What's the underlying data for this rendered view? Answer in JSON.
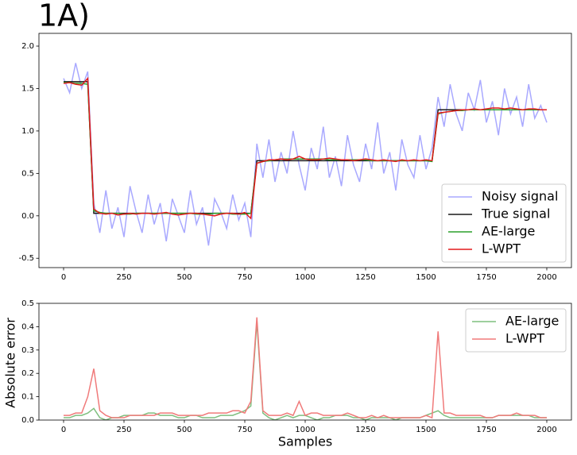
{
  "chart_data": [
    {
      "type": "line",
      "title": "1A)",
      "x": [
        0,
        25,
        50,
        75,
        100,
        125,
        150,
        175,
        200,
        225,
        250,
        275,
        300,
        325,
        350,
        375,
        400,
        425,
        450,
        475,
        500,
        525,
        550,
        575,
        600,
        625,
        650,
        675,
        700,
        725,
        750,
        775,
        800,
        825,
        850,
        875,
        900,
        925,
        950,
        975,
        1000,
        1025,
        1050,
        1075,
        1100,
        1125,
        1150,
        1175,
        1200,
        1225,
        1250,
        1275,
        1300,
        1325,
        1350,
        1375,
        1400,
        1425,
        1450,
        1475,
        1500,
        1525,
        1550,
        1575,
        1600,
        1625,
        1650,
        1675,
        1700,
        1725,
        1750,
        1775,
        1800,
        1825,
        1850,
        1875,
        1900,
        1925,
        1950,
        1975,
        2000
      ],
      "xlim": [
        -102,
        2102
      ],
      "xticks": [
        0,
        250,
        500,
        750,
        1000,
        1250,
        1500,
        1750,
        2000
      ],
      "ylim": [
        -0.61,
        2.15
      ],
      "yticks": [
        {
          "value": -0.5,
          "label": "-0.5"
        },
        {
          "value": 0,
          "label": "0.0"
        },
        0.5,
        {
          "value": 1,
          "label": "1.0"
        },
        1.5,
        {
          "value": 2,
          "label": "2.0"
        }
      ],
      "legend": "lower right",
      "series": [
        {
          "name": "Noisy signal",
          "color": "#a9a9ff",
          "values": [
            1.62,
            1.45,
            1.8,
            1.5,
            1.7,
            0.15,
            -0.2,
            0.3,
            -0.15,
            0.1,
            -0.25,
            0.35,
            0.05,
            -0.2,
            0.25,
            -0.1,
            0.15,
            -0.3,
            0.2,
            0.0,
            -0.2,
            0.3,
            -0.1,
            0.1,
            -0.35,
            0.2,
            0.05,
            -0.15,
            0.25,
            -0.05,
            0.15,
            -0.25,
            0.85,
            0.45,
            0.9,
            0.4,
            0.75,
            0.5,
            1.0,
            0.6,
            0.3,
            0.8,
            0.55,
            1.05,
            0.45,
            0.7,
            0.35,
            0.95,
            0.6,
            0.4,
            0.85,
            0.55,
            1.1,
            0.5,
            0.75,
            0.3,
            0.9,
            0.6,
            0.45,
            0.95,
            0.55,
            0.8,
            1.4,
            1.05,
            1.55,
            1.2,
            1.0,
            1.45,
            1.25,
            1.6,
            1.1,
            1.35,
            0.95,
            1.5,
            1.2,
            1.4,
            1.05,
            1.55,
            1.15,
            1.3,
            1.1
          ]
        },
        {
          "name": "True signal",
          "color": "#1a1a1a",
          "values": [
            1.58,
            1.58,
            1.58,
            1.58,
            1.58,
            0.03,
            0.03,
            0.03,
            0.03,
            0.03,
            0.03,
            0.03,
            0.03,
            0.03,
            0.03,
            0.03,
            0.03,
            0.03,
            0.03,
            0.03,
            0.03,
            0.03,
            0.03,
            0.03,
            0.03,
            0.03,
            0.03,
            0.03,
            0.03,
            0.03,
            0.03,
            0.03,
            0.65,
            0.65,
            0.65,
            0.65,
            0.65,
            0.65,
            0.65,
            0.65,
            0.65,
            0.65,
            0.65,
            0.65,
            0.65,
            0.65,
            0.65,
            0.65,
            0.65,
            0.65,
            0.65,
            0.65,
            0.65,
            0.65,
            0.65,
            0.65,
            0.65,
            0.65,
            0.65,
            0.65,
            0.65,
            0.65,
            1.25,
            1.25,
            1.25,
            1.25,
            1.25,
            1.25,
            1.25,
            1.25,
            1.25,
            1.25,
            1.25,
            1.25,
            1.25,
            1.25,
            1.25,
            1.25,
            1.25,
            1.25,
            1.25
          ]
        },
        {
          "name": "AE-large",
          "color": "#2ca02c",
          "values": [
            1.57,
            1.57,
            1.56,
            1.56,
            1.55,
            0.06,
            0.04,
            0.03,
            0.03,
            0.03,
            0.02,
            0.02,
            0.03,
            0.03,
            0.03,
            0.03,
            0.03,
            0.03,
            0.03,
            0.03,
            0.03,
            0.03,
            0.02,
            0.02,
            0.02,
            0.03,
            0.03,
            0.03,
            0.02,
            0.02,
            0.02,
            0.03,
            0.62,
            0.64,
            0.65,
            0.66,
            0.67,
            0.67,
            0.67,
            0.67,
            0.67,
            0.67,
            0.67,
            0.67,
            0.66,
            0.66,
            0.66,
            0.66,
            0.66,
            0.66,
            0.66,
            0.65,
            0.65,
            0.65,
            0.65,
            0.65,
            0.65,
            0.65,
            0.65,
            0.65,
            0.65,
            0.64,
            1.2,
            1.22,
            1.23,
            1.24,
            1.24,
            1.25,
            1.25,
            1.25,
            1.25,
            1.25,
            1.25,
            1.25,
            1.25,
            1.25,
            1.25,
            1.25,
            1.25,
            1.25,
            1.25
          ]
        },
        {
          "name": "L-WPT",
          "color": "#e31a1c",
          "values": [
            1.56,
            1.57,
            1.55,
            1.54,
            1.62,
            0.08,
            0.03,
            0.02,
            0.03,
            0.01,
            0.02,
            0.03,
            0.02,
            0.03,
            0.03,
            0.02,
            0.03,
            0.04,
            0.02,
            0.01,
            0.02,
            0.03,
            0.03,
            0.02,
            0.01,
            0.0,
            0.02,
            0.03,
            0.03,
            0.02,
            0.04,
            -0.03,
            0.62,
            0.64,
            0.66,
            0.66,
            0.67,
            0.66,
            0.67,
            0.7,
            0.67,
            0.66,
            0.66,
            0.67,
            0.68,
            0.67,
            0.66,
            0.66,
            0.65,
            0.66,
            0.67,
            0.66,
            0.65,
            0.66,
            0.65,
            0.64,
            0.66,
            0.65,
            0.66,
            0.65,
            0.66,
            0.65,
            1.21,
            1.22,
            1.23,
            1.24,
            1.25,
            1.25,
            1.26,
            1.25,
            1.26,
            1.27,
            1.27,
            1.26,
            1.27,
            1.26,
            1.25,
            1.26,
            1.26,
            1.25,
            1.25
          ]
        }
      ]
    },
    {
      "type": "line",
      "x_label": "Samples",
      "y_label": "Absolute error",
      "x": [
        0,
        25,
        50,
        75,
        100,
        125,
        150,
        175,
        200,
        225,
        250,
        275,
        300,
        325,
        350,
        375,
        400,
        425,
        450,
        475,
        500,
        525,
        550,
        575,
        600,
        625,
        650,
        675,
        700,
        725,
        750,
        775,
        800,
        825,
        850,
        875,
        900,
        925,
        950,
        975,
        1000,
        1025,
        1050,
        1075,
        1100,
        1125,
        1150,
        1175,
        1200,
        1225,
        1250,
        1275,
        1300,
        1325,
        1350,
        1375,
        1400,
        1425,
        1450,
        1475,
        1500,
        1525,
        1550,
        1575,
        1600,
        1625,
        1650,
        1675,
        1700,
        1725,
        1750,
        1775,
        1800,
        1825,
        1850,
        1875,
        1900,
        1925,
        1950,
        1975,
        2000
      ],
      "xlim": [
        -102,
        2102
      ],
      "xticks": [
        0,
        250,
        500,
        750,
        1000,
        1250,
        1500,
        1750,
        2000
      ],
      "ylim": [
        0,
        0.5
      ],
      "yticks": [
        {
          "value": 0,
          "label": "0.0"
        },
        0.1,
        0.2,
        0.3,
        0.4,
        0.5
      ],
      "legend": "upper right",
      "series": [
        {
          "name": "AE-large",
          "color": "#7fbf7f",
          "values": [
            0.01,
            0.01,
            0.02,
            0.02,
            0.03,
            0.05,
            0.01,
            0.0,
            0.01,
            0.01,
            0.02,
            0.02,
            0.02,
            0.02,
            0.03,
            0.03,
            0.02,
            0.02,
            0.02,
            0.01,
            0.01,
            0.02,
            0.02,
            0.01,
            0.01,
            0.01,
            0.02,
            0.02,
            0.02,
            0.03,
            0.04,
            0.06,
            0.42,
            0.03,
            0.01,
            0.0,
            0.01,
            0.02,
            0.01,
            0.02,
            0.02,
            0.01,
            0.0,
            0.01,
            0.01,
            0.02,
            0.02,
            0.02,
            0.01,
            0.01,
            0.0,
            0.01,
            0.01,
            0.01,
            0.01,
            0.0,
            0.01,
            0.01,
            0.01,
            0.01,
            0.02,
            0.03,
            0.04,
            0.02,
            0.01,
            0.01,
            0.01,
            0.01,
            0.01,
            0.01,
            0.01,
            0.01,
            0.02,
            0.02,
            0.02,
            0.02,
            0.02,
            0.02,
            0.01,
            0.01,
            0.01
          ]
        },
        {
          "name": "L-WPT",
          "color": "#f07a7a",
          "values": [
            0.02,
            0.02,
            0.03,
            0.03,
            0.1,
            0.22,
            0.04,
            0.02,
            0.01,
            0.01,
            0.01,
            0.02,
            0.02,
            0.02,
            0.02,
            0.02,
            0.03,
            0.03,
            0.03,
            0.02,
            0.02,
            0.02,
            0.02,
            0.02,
            0.03,
            0.03,
            0.03,
            0.03,
            0.04,
            0.04,
            0.03,
            0.08,
            0.44,
            0.04,
            0.02,
            0.02,
            0.02,
            0.03,
            0.02,
            0.08,
            0.02,
            0.03,
            0.03,
            0.02,
            0.02,
            0.02,
            0.02,
            0.03,
            0.02,
            0.01,
            0.01,
            0.02,
            0.01,
            0.02,
            0.01,
            0.01,
            0.01,
            0.01,
            0.01,
            0.01,
            0.02,
            0.01,
            0.38,
            0.03,
            0.03,
            0.02,
            0.02,
            0.02,
            0.02,
            0.02,
            0.01,
            0.01,
            0.02,
            0.02,
            0.02,
            0.03,
            0.02,
            0.02,
            0.02,
            0.01,
            0.01
          ]
        }
      ]
    }
  ]
}
